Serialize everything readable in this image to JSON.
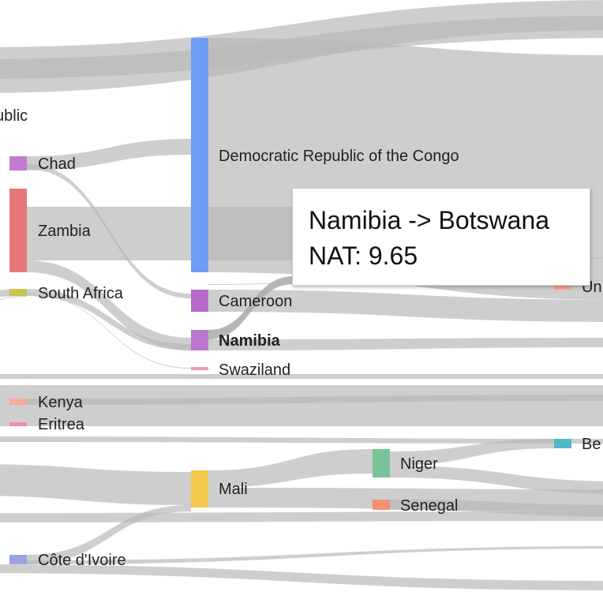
{
  "colors": {
    "link": "#b9b9b9",
    "link_hover": "#a9a9a9"
  },
  "nodes": [
    {
      "id": "CAR",
      "label": "ublic",
      "color": "#c48cd3",
      "bold": false
    },
    {
      "id": "TCD",
      "label": "Chad",
      "color": "#c27bd1",
      "bold": false
    },
    {
      "id": "ZMB",
      "label": "Zambia",
      "color": "#e4777a",
      "bold": false
    },
    {
      "id": "ZAF",
      "label": "South Africa",
      "color": "#c8c44e",
      "bold": false
    },
    {
      "id": "KEN",
      "label": "Kenya",
      "color": "#f5ad99",
      "bold": false
    },
    {
      "id": "ERI",
      "label": "Eritrea",
      "color": "#ea8fb1",
      "bold": false
    },
    {
      "id": "CIV",
      "label": "Côte d'Ivoire",
      "color": "#9aa3e0",
      "bold": false
    },
    {
      "id": "COD",
      "label": "Democratic Republic of the Congo",
      "color": "#6f9cf6",
      "bold": false
    },
    {
      "id": "CMR",
      "label": "Cameroon",
      "color": "#b66ac9",
      "bold": false
    },
    {
      "id": "NAM",
      "label": "Namibia",
      "color": "#bb77d0",
      "bold": true
    },
    {
      "id": "SWZ",
      "label": "Swaziland",
      "color": "#ee95bb",
      "bold": false
    },
    {
      "id": "MLI",
      "label": "Mali",
      "color": "#f2c84d",
      "bold": false
    },
    {
      "id": "NER",
      "label": "Niger",
      "color": "#78c497",
      "bold": false
    },
    {
      "id": "SEN",
      "label": "Senegal",
      "color": "#f59070",
      "bold": false
    },
    {
      "id": "UNK",
      "label": "Un",
      "color": "#f7a98b",
      "bold": false
    },
    {
      "id": "BEN",
      "label": "Be",
      "color": "#4fb8c9",
      "bold": false
    }
  ],
  "tooltip": {
    "line1": "Namibia -> Botswana",
    "line2": "NAT: 9.65"
  }
}
